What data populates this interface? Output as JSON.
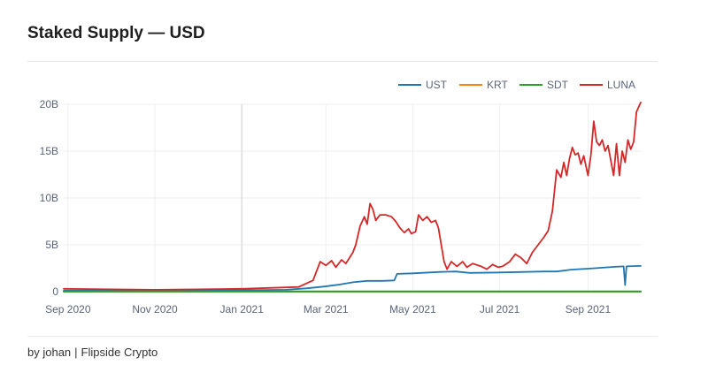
{
  "title": "Staked Supply — USD",
  "footer": {
    "author": "by johan",
    "separator": "|",
    "source": "Flipside Crypto"
  },
  "chart_data": {
    "type": "line",
    "title": "Staked Supply — USD",
    "xlabel": "",
    "ylabel": "",
    "legend_position": "top-right",
    "grid": true,
    "x_range": [
      "2020-08-29",
      "2021-10-08"
    ],
    "ylim": [
      0,
      20000000000
    ],
    "x_ticks": [
      {
        "date": "2020-09-01",
        "label": "Sep 2020"
      },
      {
        "date": "2020-11-01",
        "label": "Nov 2020"
      },
      {
        "date": "2021-01-01",
        "label": "Jan 2021"
      },
      {
        "date": "2021-03-01",
        "label": "Mar 2021"
      },
      {
        "date": "2021-05-01",
        "label": "May 2021"
      },
      {
        "date": "2021-07-01",
        "label": "Jul 2021"
      },
      {
        "date": "2021-09-01",
        "label": "Sep 2021"
      }
    ],
    "y_ticks": [
      {
        "value": 0,
        "label": "0"
      },
      {
        "value": 5000000000,
        "label": "5B"
      },
      {
        "value": 10000000000,
        "label": "10B"
      },
      {
        "value": 15000000000,
        "label": "15B"
      },
      {
        "value": 20000000000,
        "label": "20B"
      }
    ],
    "series": [
      {
        "name": "UST",
        "color": "#1f77b4",
        "points": [
          [
            "2020-08-29",
            0.1
          ],
          [
            "2020-11-01",
            0.12
          ],
          [
            "2021-01-01",
            0.15
          ],
          [
            "2021-02-01",
            0.2
          ],
          [
            "2021-02-15",
            0.35
          ],
          [
            "2021-02-28",
            0.55
          ],
          [
            "2021-03-10",
            0.75
          ],
          [
            "2021-03-20",
            1.0
          ],
          [
            "2021-03-30",
            1.15
          ],
          [
            "2021-04-10",
            1.15
          ],
          [
            "2021-04-18",
            1.2
          ],
          [
            "2021-04-20",
            1.9
          ],
          [
            "2021-05-01",
            1.95
          ],
          [
            "2021-05-20",
            2.1
          ],
          [
            "2021-05-31",
            2.15
          ],
          [
            "2021-06-10",
            2.0
          ],
          [
            "2021-07-01",
            2.05
          ],
          [
            "2021-08-01",
            2.15
          ],
          [
            "2021-08-10",
            2.15
          ],
          [
            "2021-08-20",
            2.35
          ],
          [
            "2021-09-01",
            2.45
          ],
          [
            "2021-09-20",
            2.65
          ],
          [
            "2021-09-26",
            2.7
          ],
          [
            "2021-09-27",
            0.7
          ],
          [
            "2021-09-28",
            2.7
          ],
          [
            "2021-10-08",
            2.75
          ]
        ]
      },
      {
        "name": "KRT",
        "color": "#ff7f0e",
        "points": [
          [
            "2020-08-29",
            0.01
          ],
          [
            "2021-10-08",
            0.01
          ]
        ]
      },
      {
        "name": "SDT",
        "color": "#2ca02c",
        "points": [
          [
            "2020-08-29",
            0.02
          ],
          [
            "2021-10-08",
            0.02
          ]
        ]
      },
      {
        "name": "LUNA",
        "color": "#d62728",
        "points": [
          [
            "2020-08-29",
            0.3
          ],
          [
            "2020-10-01",
            0.25
          ],
          [
            "2020-11-01",
            0.2
          ],
          [
            "2020-12-01",
            0.25
          ],
          [
            "2021-01-01",
            0.3
          ],
          [
            "2021-02-01",
            0.45
          ],
          [
            "2021-02-10",
            0.5
          ],
          [
            "2021-02-17",
            1.0
          ],
          [
            "2021-02-20",
            1.2
          ],
          [
            "2021-02-25",
            3.2
          ],
          [
            "2021-03-01",
            2.8
          ],
          [
            "2021-03-05",
            3.3
          ],
          [
            "2021-03-08",
            2.6
          ],
          [
            "2021-03-12",
            3.4
          ],
          [
            "2021-03-15",
            3.0
          ],
          [
            "2021-03-20",
            4.2
          ],
          [
            "2021-03-22",
            5.0
          ],
          [
            "2021-03-25",
            7.0
          ],
          [
            "2021-03-28",
            8.0
          ],
          [
            "2021-03-30",
            7.2
          ],
          [
            "2021-04-01",
            9.4
          ],
          [
            "2021-04-03",
            8.8
          ],
          [
            "2021-04-05",
            7.6
          ],
          [
            "2021-04-08",
            8.2
          ],
          [
            "2021-04-12",
            8.2
          ],
          [
            "2021-04-16",
            8.0
          ],
          [
            "2021-04-19",
            7.5
          ],
          [
            "2021-04-22",
            6.8
          ],
          [
            "2021-04-25",
            6.3
          ],
          [
            "2021-04-28",
            6.7
          ],
          [
            "2021-04-30",
            6.2
          ],
          [
            "2021-05-03",
            6.4
          ],
          [
            "2021-05-05",
            8.2
          ],
          [
            "2021-05-08",
            7.6
          ],
          [
            "2021-05-11",
            8.0
          ],
          [
            "2021-05-14",
            7.4
          ],
          [
            "2021-05-17",
            7.6
          ],
          [
            "2021-05-19",
            6.8
          ],
          [
            "2021-05-21",
            5.0
          ],
          [
            "2021-05-23",
            3.2
          ],
          [
            "2021-05-25",
            2.4
          ],
          [
            "2021-05-28",
            3.2
          ],
          [
            "2021-06-01",
            2.7
          ],
          [
            "2021-06-05",
            3.2
          ],
          [
            "2021-06-08",
            2.6
          ],
          [
            "2021-06-12",
            3.0
          ],
          [
            "2021-06-18",
            2.7
          ],
          [
            "2021-06-22",
            2.4
          ],
          [
            "2021-06-26",
            2.9
          ],
          [
            "2021-06-30",
            2.6
          ],
          [
            "2021-07-03",
            2.7
          ],
          [
            "2021-07-08",
            3.2
          ],
          [
            "2021-07-12",
            4.0
          ],
          [
            "2021-07-16",
            3.6
          ],
          [
            "2021-07-20",
            3.0
          ],
          [
            "2021-07-24",
            4.2
          ],
          [
            "2021-07-28",
            5.0
          ],
          [
            "2021-08-01",
            5.8
          ],
          [
            "2021-08-04",
            6.5
          ],
          [
            "2021-08-07",
            8.6
          ],
          [
            "2021-08-10",
            13.0
          ],
          [
            "2021-08-13",
            12.2
          ],
          [
            "2021-08-15",
            13.8
          ],
          [
            "2021-08-17",
            12.4
          ],
          [
            "2021-08-19",
            14.2
          ],
          [
            "2021-08-21",
            15.4
          ],
          [
            "2021-08-23",
            14.6
          ],
          [
            "2021-08-25",
            14.8
          ],
          [
            "2021-08-27",
            13.6
          ],
          [
            "2021-08-29",
            14.5
          ],
          [
            "2021-09-01",
            12.4
          ],
          [
            "2021-09-03",
            14.6
          ],
          [
            "2021-09-05",
            18.2
          ],
          [
            "2021-09-07",
            16.0
          ],
          [
            "2021-09-09",
            15.6
          ],
          [
            "2021-09-11",
            16.2
          ],
          [
            "2021-09-13",
            15.0
          ],
          [
            "2021-09-15",
            15.6
          ],
          [
            "2021-09-17",
            14.0
          ],
          [
            "2021-09-19",
            12.4
          ],
          [
            "2021-09-21",
            15.8
          ],
          [
            "2021-09-23",
            12.4
          ],
          [
            "2021-09-25",
            15.0
          ],
          [
            "2021-09-27",
            13.8
          ],
          [
            "2021-09-29",
            16.2
          ],
          [
            "2021-10-01",
            15.2
          ],
          [
            "2021-10-03",
            16.0
          ],
          [
            "2021-10-05",
            19.2
          ],
          [
            "2021-10-08",
            20.2
          ]
        ]
      }
    ]
  }
}
